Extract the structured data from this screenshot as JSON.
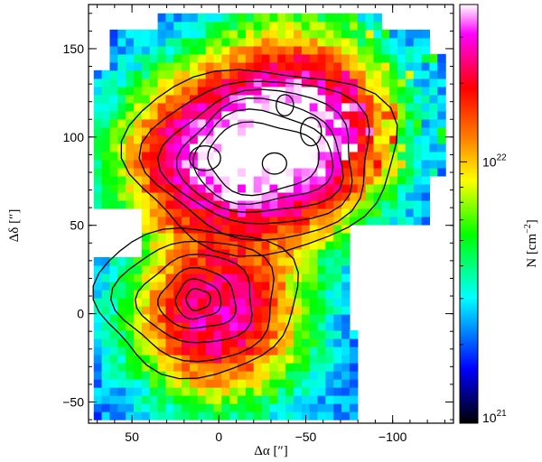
{
  "chart_data": {
    "type": "heatmap",
    "title": "",
    "xlabel": "Δα [″]",
    "ylabel": "Δδ [″]",
    "xlim": [
      75,
      -135
    ],
    "ylim": [
      -62,
      175
    ],
    "x_ticks": [
      50,
      0,
      -50,
      -100
    ],
    "x_tick_labels": [
      "50",
      "0",
      "−50",
      "−100"
    ],
    "y_ticks": [
      -50,
      0,
      50,
      100,
      150
    ],
    "y_tick_labels": [
      "−50",
      "0",
      "50",
      "100",
      "150"
    ],
    "colorbar": {
      "label": "N [cm",
      "label_sup": "−2",
      "label_end": "]",
      "scale": "log",
      "range": [
        1e+21,
        4e+22
      ],
      "ticks": [
        1e+21,
        1e+22
      ],
      "tick_labels": [
        {
          "base": "10",
          "exp": "21"
        },
        {
          "base": "10",
          "exp": "22"
        }
      ],
      "colormap": [
        "#000000",
        "#0000ff",
        "#00ffff",
        "#00ff00",
        "#ffff00",
        "#ff8000",
        "#ff0000",
        "#ff00ff",
        "#ffffff"
      ]
    },
    "peaks": [
      {
        "x": 0,
        "y": 0,
        "log_n": 22.4
      },
      {
        "x": 8,
        "y": 88,
        "log_n": 22.45
      },
      {
        "x": -32,
        "y": 85,
        "log_n": 22.35
      },
      {
        "x": -53,
        "y": 103,
        "log_n": 22.3
      },
      {
        "x": -38,
        "y": 118,
        "log_n": 22.2
      }
    ],
    "contours": "black contour lines of column density over two cores (northern 30–140″, southern −40–40″)"
  }
}
